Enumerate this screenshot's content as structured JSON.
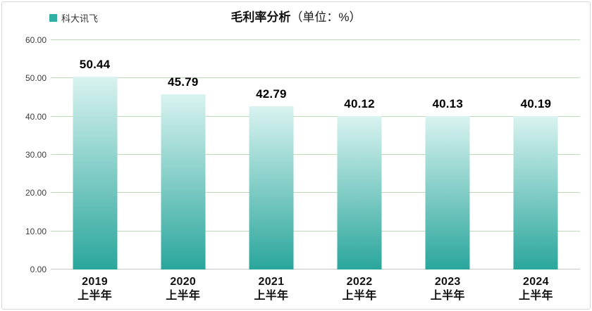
{
  "title": {
    "main": "毛利率分析",
    "unit": "（单位：%）"
  },
  "legend": {
    "label": "科大讯飞",
    "swatch_color": "#2FAFA6"
  },
  "chart_data": {
    "type": "bar",
    "title": "毛利率分析（单位：%）",
    "series": [
      {
        "name": "科大讯飞",
        "values": [
          50.44,
          45.79,
          42.79,
          40.12,
          40.13,
          40.19
        ]
      }
    ],
    "categories": [
      [
        "2019",
        "上半年"
      ],
      [
        "2020",
        "上半年"
      ],
      [
        "2021",
        "上半年"
      ],
      [
        "2022",
        "上半年"
      ],
      [
        "2023",
        "上半年"
      ],
      [
        "2024",
        "上半年"
      ]
    ],
    "value_labels": [
      "50.44",
      "45.79",
      "42.79",
      "40.12",
      "40.13",
      "40.19"
    ],
    "ylim": [
      0,
      60
    ],
    "ytick_step": 10,
    "ytick_labels": [
      "0.00",
      "10.00",
      "20.00",
      "30.00",
      "40.00",
      "50.00",
      "60.00"
    ],
    "grid": true,
    "legend_position": "top-left",
    "colors": {
      "bar_top": "#D9F3F0",
      "bar_bottom": "#2AA69C",
      "gridline": "#BBDDB6",
      "baseline": "#C7C7C7",
      "value_label": "#000000"
    }
  }
}
